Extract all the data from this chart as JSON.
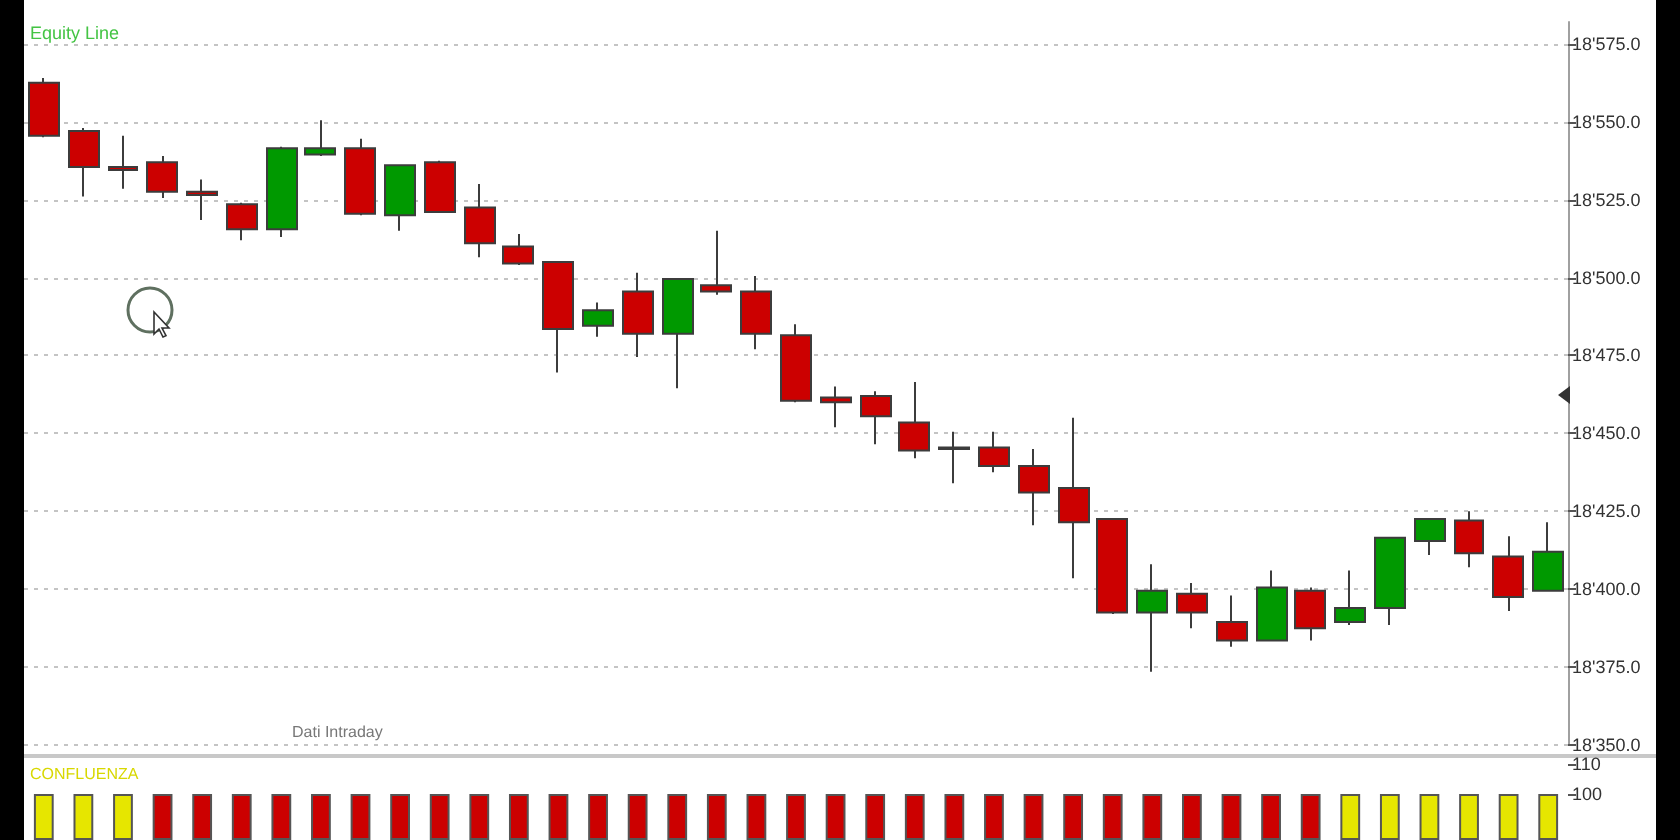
{
  "chart_data": [
    {
      "type": "candlestick",
      "title": "Equity Line",
      "annotations": [
        "Dati Intraday"
      ],
      "categories": [
        null,
        null,
        null,
        null,
        null,
        null,
        null,
        null,
        null,
        null,
        null,
        null,
        null,
        null,
        null,
        null,
        null,
        null,
        null,
        null,
        null,
        null,
        null,
        null,
        null,
        null,
        null,
        null,
        null,
        null,
        null,
        null,
        null,
        null,
        null,
        null,
        null,
        null,
        null
      ],
      "ohlc": [
        [
          18562.5,
          18564,
          18545,
          18545.5
        ],
        [
          18547,
          18548,
          18526,
          18535.5
        ],
        [
          18535.5,
          18545.5,
          18528.5,
          18534.5
        ],
        [
          18537,
          18539,
          18525.5,
          18527.5
        ],
        [
          18527.5,
          18531.5,
          18518.5,
          18526.5
        ],
        [
          18523.5,
          18524,
          18512,
          18515.5
        ],
        [
          18515.5,
          18542,
          18513,
          18541.5
        ],
        [
          18539.5,
          18550.5,
          18539,
          18541.5
        ],
        [
          18541.5,
          18544.5,
          18520,
          18520.5
        ],
        [
          18520,
          18536,
          18515,
          18536
        ],
        [
          18537,
          18537.5,
          18521,
          18521
        ],
        [
          18522.5,
          18530,
          18506.5,
          18511
        ],
        [
          18510,
          18514,
          18504,
          18504.5
        ],
        [
          18505,
          18505,
          18469.5,
          18483.5
        ],
        [
          18484.5,
          18492,
          18481,
          18489.5
        ],
        [
          18495.5,
          18501.5,
          18474.5,
          18482
        ],
        [
          18482,
          18499.5,
          18464.5,
          18499.5
        ],
        [
          18497.5,
          18515,
          18494.5,
          18495.5
        ],
        [
          18495.5,
          18500.5,
          18477,
          18482
        ],
        [
          18481.5,
          18485,
          18460,
          18460.5
        ],
        [
          18461.5,
          18465,
          18452,
          18460
        ],
        [
          18462,
          18463.5,
          18446.5,
          18455.5
        ],
        [
          18453.5,
          18466.5,
          18442,
          18444.5
        ],
        [
          18445.5,
          18450.5,
          18434,
          18445
        ],
        [
          18445.5,
          18450.5,
          18437.5,
          18439.5
        ],
        [
          18439.5,
          18445,
          18420.5,
          18431
        ],
        [
          18432.5,
          18455,
          18403.5,
          18421.5
        ],
        [
          18422.5,
          18422.5,
          18392,
          18392.5
        ],
        [
          18392.5,
          18408,
          18373.5,
          18399.5
        ],
        [
          18398.5,
          18402,
          18387.5,
          18392.5
        ],
        [
          18389.5,
          18398,
          18381.5,
          18383.5
        ],
        [
          18383.5,
          18406,
          18383.5,
          18400.5
        ],
        [
          18399.5,
          18400.5,
          18383.5,
          18387.5
        ],
        [
          18389.5,
          18406,
          18388.5,
          18394
        ],
        [
          18394,
          18416.5,
          18388.5,
          18416.5
        ],
        [
          18415.5,
          18422.5,
          18411,
          18422.5
        ],
        [
          18422,
          18425,
          18407,
          18411.5
        ],
        [
          18410.5,
          18417,
          18393,
          18397.5
        ],
        [
          18399.5,
          18421.5,
          18399.5,
          18412
        ]
      ],
      "colors": [
        "#cc0000",
        "#cc0000",
        "#cc0000",
        "#cc0000",
        "#cc0000",
        "#cc0000",
        "#009900",
        "#009900",
        "#cc0000",
        "#009900",
        "#cc0000",
        "#cc0000",
        "#cc0000",
        "#cc0000",
        "#009900",
        "#cc0000",
        "#009900",
        "#cc0000",
        "#cc0000",
        "#cc0000",
        "#cc0000",
        "#cc0000",
        "#cc0000",
        "#cc0000",
        "#cc0000",
        "#cc0000",
        "#cc0000",
        "#cc0000",
        "#009900",
        "#cc0000",
        "#cc0000",
        "#009900",
        "#cc0000",
        "#009900",
        "#009900",
        "#009900",
        "#cc0000",
        "#cc0000",
        "#009900"
      ],
      "ylim": [
        18350,
        18582
      ],
      "yticks": [
        {
          "value": 18350,
          "label": "18'350.0"
        },
        {
          "value": 18375,
          "label": "18'375.0"
        },
        {
          "value": 18400,
          "label": "18'400.0"
        },
        {
          "value": 18425,
          "label": "18'425.0"
        },
        {
          "value": 18450,
          "label": "18'450.0"
        },
        {
          "value": 18475,
          "label": "18'475.0"
        },
        {
          "value": 18500,
          "label": "18'500.0"
        },
        {
          "value": 18525,
          "label": "18'525.0"
        },
        {
          "value": 18550,
          "label": "18'550.0"
        },
        {
          "value": 18575,
          "label": "18'575.0"
        }
      ],
      "grid": "y",
      "tick_labels": "y"
    },
    {
      "type": "bar",
      "title": "CONFLUENZA",
      "categories": [
        null,
        null,
        null,
        null,
        null,
        null,
        null,
        null,
        null,
        null,
        null,
        null,
        null,
        null,
        null,
        null,
        null,
        null,
        null,
        null,
        null,
        null,
        null,
        null,
        null,
        null,
        null,
        null,
        null,
        null,
        null,
        null,
        null,
        null,
        null,
        null,
        null,
        null,
        null
      ],
      "values": [
        100,
        100,
        100,
        100,
        100,
        100,
        100,
        100,
        100,
        100,
        100,
        100,
        100,
        100,
        100,
        100,
        100,
        100,
        100,
        100,
        100,
        100,
        100,
        100,
        100,
        100,
        100,
        100,
        100,
        100,
        100,
        100,
        100,
        100,
        100,
        100,
        100,
        100,
        100
      ],
      "colors": [
        "#e6e600",
        "#e6e600",
        "#e6e600",
        "#cc0000",
        "#cc0000",
        "#cc0000",
        "#cc0000",
        "#cc0000",
        "#cc0000",
        "#cc0000",
        "#cc0000",
        "#cc0000",
        "#cc0000",
        "#cc0000",
        "#cc0000",
        "#cc0000",
        "#cc0000",
        "#cc0000",
        "#cc0000",
        "#cc0000",
        "#cc0000",
        "#cc0000",
        "#cc0000",
        "#cc0000",
        "#cc0000",
        "#cc0000",
        "#cc0000",
        "#cc0000",
        "#cc0000",
        "#cc0000",
        "#cc0000",
        "#cc0000",
        "#cc0000",
        "#e6e600",
        "#e6e600",
        "#e6e600",
        "#e6e600",
        "#e6e600",
        "#e6e600"
      ],
      "ylim": [
        85,
        110
      ],
      "yticks": [
        100,
        110
      ],
      "tick_labels": "y"
    }
  ]
}
